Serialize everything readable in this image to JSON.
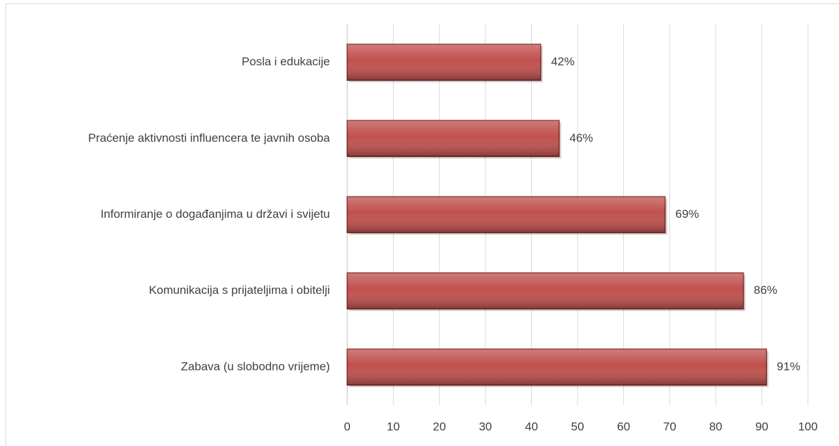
{
  "chart_data": {
    "type": "bar",
    "orientation": "horizontal",
    "categories": [
      "Posla i edukacije",
      "Praćenje aktivnosti influencera te javnih osoba",
      "Informiranje o događanjima u državi i svijetu",
      "Komunikacija s prijateljima i obitelji",
      "Zabava (u slobodno vrijeme)"
    ],
    "values": [
      42,
      46,
      69,
      86,
      91
    ],
    "value_labels": [
      "42%",
      "46%",
      "69%",
      "86%",
      "91%"
    ],
    "color": "#c0504d",
    "xlim": [
      0,
      100
    ],
    "xticks": [
      0,
      10,
      20,
      30,
      40,
      50,
      60,
      70,
      80,
      90,
      100
    ],
    "grid": true
  }
}
